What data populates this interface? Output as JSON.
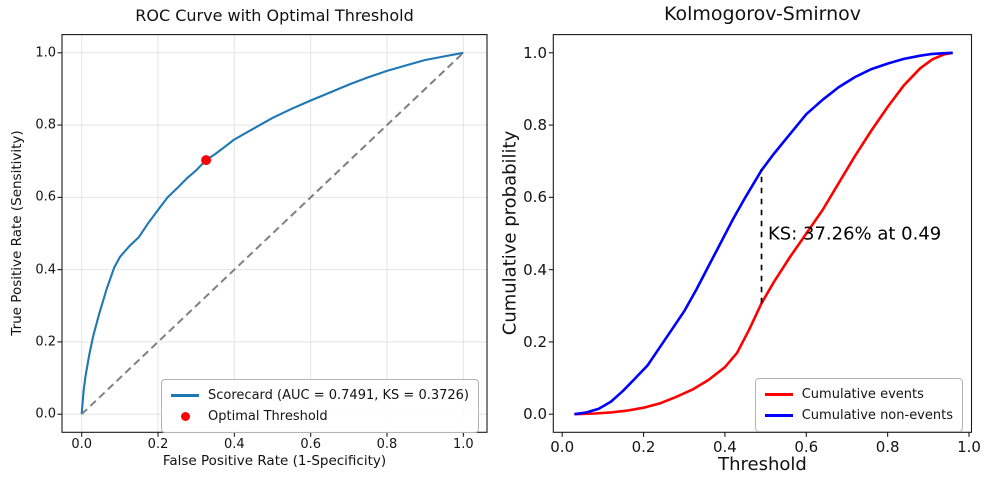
{
  "figure": {
    "background": "#ffffff"
  },
  "chart_data": [
    {
      "type": "line",
      "title": "ROC Curve with Optimal Threshold",
      "xlabel": "False Positive Rate (1-Specificity)",
      "ylabel": "True Positive Rate (Sensitivity)",
      "xlim": [
        -0.05,
        1.05
      ],
      "ylim": [
        -0.05,
        1.05
      ],
      "x_tick_labels": [
        "0.0",
        "0.2",
        "0.4",
        "0.6",
        "0.8",
        "1.0"
      ],
      "y_tick_labels": [
        "0.0",
        "0.2",
        "0.4",
        "0.6",
        "0.8",
        "1.0"
      ],
      "grid": true,
      "grid_color": "#e4e4e4",
      "legend_position": "lower-right",
      "auc": 0.7491,
      "ks": 0.3726,
      "series": [
        {
          "id": "roc-curve",
          "name": "Scorecard (AUC = 0.7491, KS = 0.3726)",
          "color": "#1f77b4",
          "style": "solid",
          "x": [
            0,
            0.005,
            0.01,
            0.02,
            0.03,
            0.045,
            0.065,
            0.085,
            0.1,
            0.125,
            0.15,
            0.175,
            0.2,
            0.225,
            0.25,
            0.275,
            0.3,
            0.326,
            0.35,
            0.375,
            0.4,
            0.45,
            0.5,
            0.55,
            0.6,
            0.65,
            0.7,
            0.75,
            0.8,
            0.85,
            0.9,
            0.95,
            1.0
          ],
          "y": [
            0,
            0.065,
            0.105,
            0.165,
            0.215,
            0.275,
            0.345,
            0.405,
            0.435,
            0.465,
            0.49,
            0.53,
            0.565,
            0.6,
            0.625,
            0.652,
            0.675,
            0.703,
            0.72,
            0.74,
            0.76,
            0.79,
            0.82,
            0.845,
            0.868,
            0.89,
            0.912,
            0.932,
            0.95,
            0.965,
            0.98,
            0.99,
            1.0
          ]
        },
        {
          "id": "chance-diagonal",
          "name": "",
          "color": "#808080",
          "style": "dashed",
          "x": [
            0,
            1
          ],
          "y": [
            0,
            1
          ]
        }
      ],
      "point": {
        "id": "optimal-threshold-point",
        "name": "Optimal Threshold",
        "color": "#ff0000",
        "x": 0.326,
        "y": 0.703
      }
    },
    {
      "type": "line",
      "title": "Kolmogorov-Smirnov",
      "xlabel": "Threshold",
      "ylabel": "Cumulative probability",
      "xlim": [
        -0.022,
        1.007
      ],
      "ylim": [
        -0.05,
        1.05
      ],
      "x_tick_labels": [
        "0.0",
        "0.2",
        "0.4",
        "0.6",
        "0.8",
        "1.0"
      ],
      "y_tick_labels": [
        "0.0",
        "0.2",
        "0.4",
        "0.6",
        "0.8",
        "1.0"
      ],
      "grid": false,
      "legend_position": "lower-right",
      "series": [
        {
          "id": "cumulative-events-curve",
          "name": "Cumulative events",
          "color": "#ff0000",
          "style": "solid",
          "x": [
            0.03,
            0.08,
            0.12,
            0.16,
            0.2,
            0.24,
            0.28,
            0.32,
            0.36,
            0.4,
            0.43,
            0.46,
            0.49,
            0.52,
            0.56,
            0.6,
            0.64,
            0.68,
            0.72,
            0.76,
            0.8,
            0.84,
            0.88,
            0.91,
            0.94,
            0.96
          ],
          "y": [
            0,
            0.002,
            0.005,
            0.01,
            0.018,
            0.03,
            0.048,
            0.068,
            0.095,
            0.13,
            0.17,
            0.235,
            0.307,
            0.365,
            0.435,
            0.5,
            0.565,
            0.64,
            0.715,
            0.785,
            0.85,
            0.91,
            0.957,
            0.982,
            0.996,
            1.0
          ]
        },
        {
          "id": "cumulative-non-events-curve",
          "name": "Cumulative non-events",
          "color": "#0000ff",
          "style": "solid",
          "x": [
            0.03,
            0.06,
            0.09,
            0.12,
            0.15,
            0.18,
            0.21,
            0.24,
            0.27,
            0.3,
            0.33,
            0.36,
            0.39,
            0.42,
            0.45,
            0.49,
            0.52,
            0.56,
            0.6,
            0.64,
            0.68,
            0.72,
            0.76,
            0.8,
            0.84,
            0.88,
            0.91,
            0.94,
            0.96
          ],
          "y": [
            0,
            0.005,
            0.015,
            0.035,
            0.065,
            0.1,
            0.135,
            0.185,
            0.235,
            0.285,
            0.345,
            0.41,
            0.475,
            0.54,
            0.6,
            0.675,
            0.72,
            0.775,
            0.83,
            0.87,
            0.905,
            0.933,
            0.955,
            0.97,
            0.983,
            0.992,
            0.997,
            0.999,
            1.0
          ]
        }
      ],
      "ks_line": {
        "x": 0.49,
        "y_from": 0.307,
        "y_to": 0.678,
        "color": "#000000",
        "style": "dashed"
      },
      "annotation": {
        "text": "KS: 37.26% at 0.49",
        "ks_percent": 37.26,
        "threshold": 0.49,
        "x": 0.506,
        "y": 0.5
      }
    }
  ]
}
